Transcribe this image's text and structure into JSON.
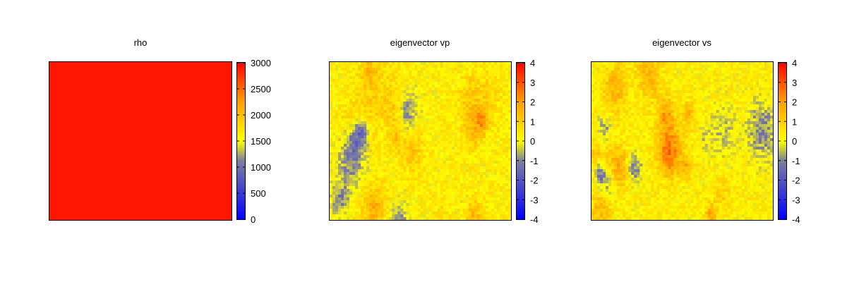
{
  "chart_data": [
    {
      "type": "heatmap",
      "title": "rho",
      "colorbar": {
        "range": [
          0,
          3000
        ],
        "ticks": [
          "3000",
          "2500",
          "2000",
          "1500",
          "1000",
          "500",
          "0"
        ]
      },
      "field": "uniform",
      "value": 2900,
      "colors": {
        "frame": "#000000"
      }
    },
    {
      "type": "heatmap",
      "title": "eigenvector vp",
      "colorbar": {
        "range": [
          -4,
          4
        ],
        "ticks": [
          "4",
          "3",
          "2",
          "1",
          "0",
          "-1",
          "-2",
          "-3",
          "-4"
        ]
      },
      "field": "random",
      "seed": 7,
      "colors": {
        "frame": "#000000"
      }
    },
    {
      "type": "heatmap",
      "title": "eigenvector vs",
      "colorbar": {
        "range": [
          -4,
          4
        ],
        "ticks": [
          "4",
          "3",
          "2",
          "1",
          "0",
          "-1",
          "-2",
          "-3",
          "-4"
        ]
      },
      "field": "random",
      "seed": 23,
      "colors": {
        "frame": "#000000"
      }
    }
  ],
  "palette": [
    "#0000ff",
    "#7f7fa0",
    "#ffff00",
    "#ffa000",
    "#ff0000"
  ]
}
